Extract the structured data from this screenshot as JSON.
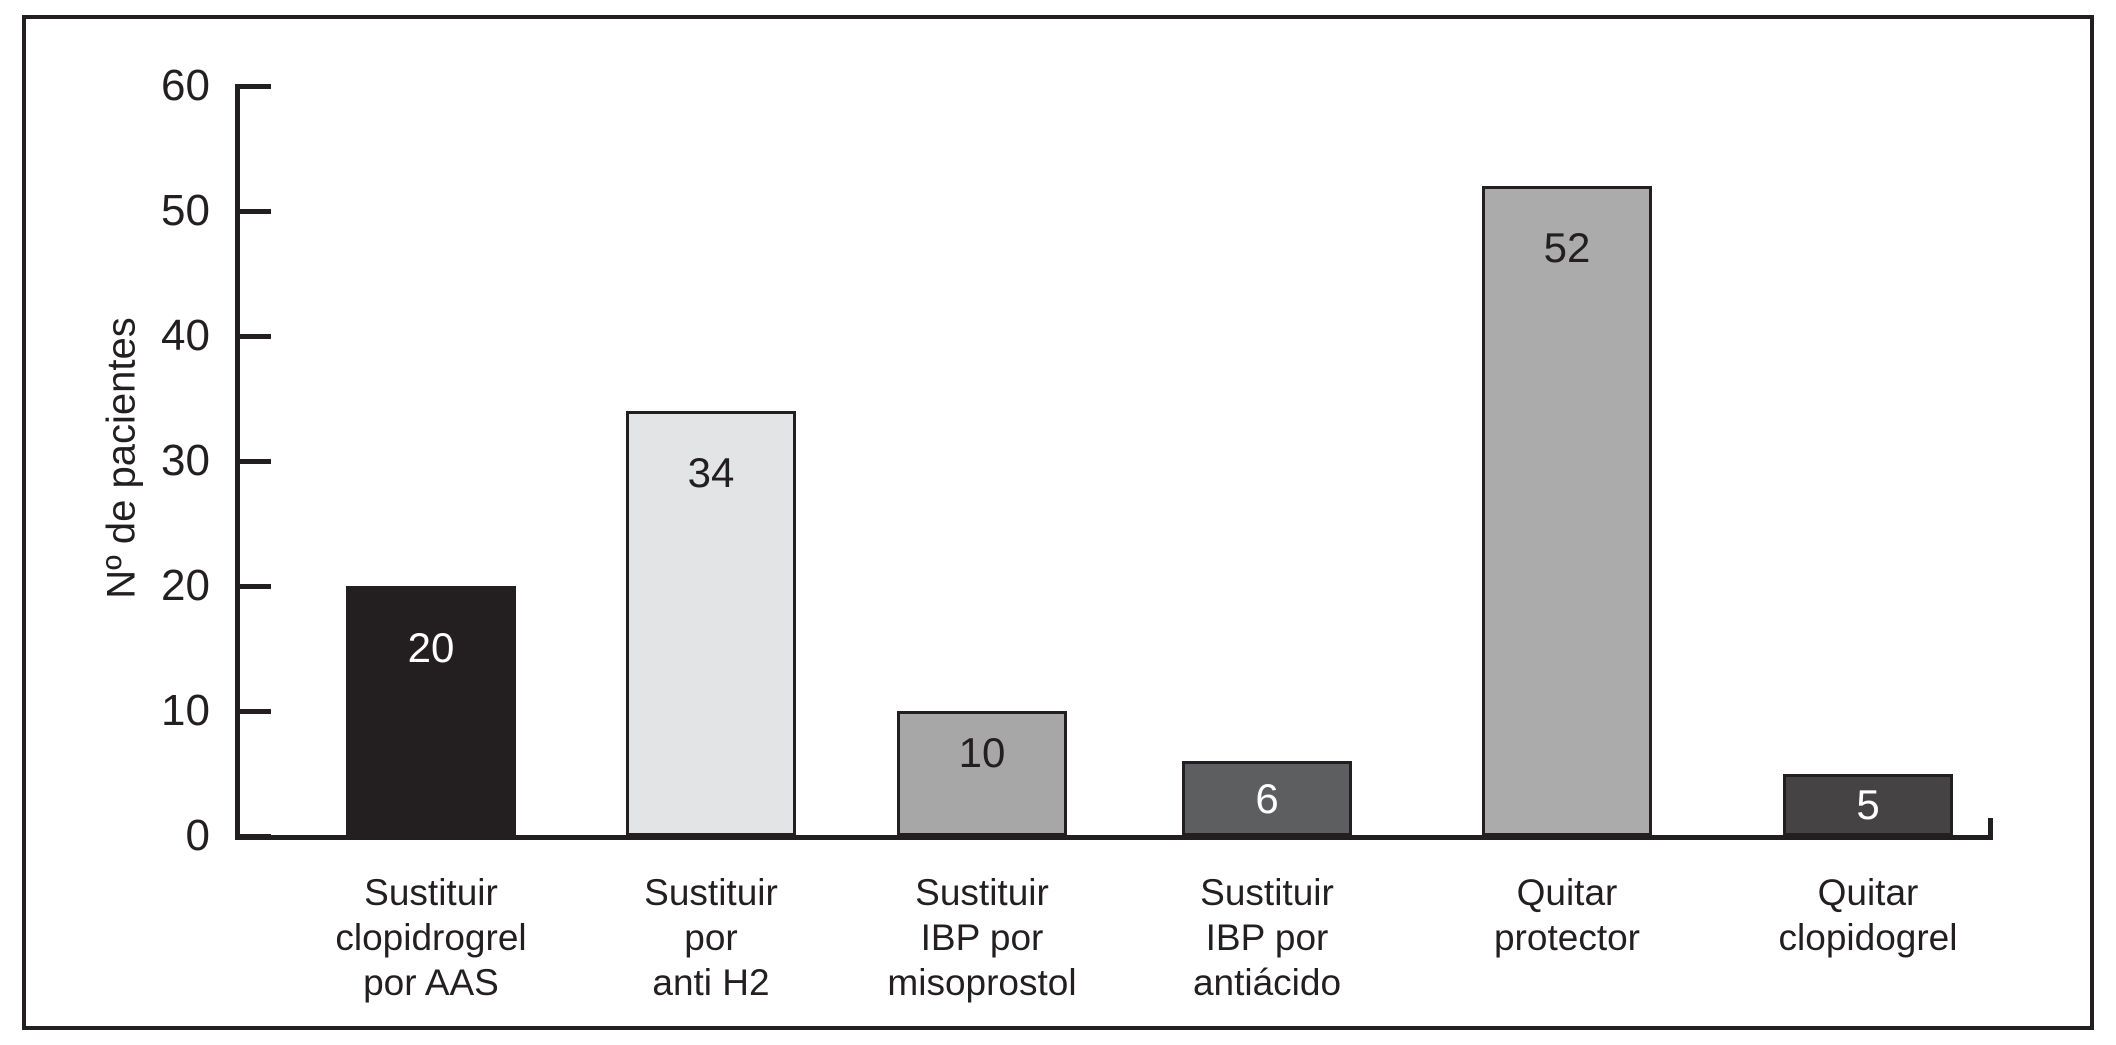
{
  "chart_data": {
    "type": "bar",
    "title": "",
    "xlabel": "",
    "ylabel": "Nº de pacientes",
    "ylim": [
      0,
      60
    ],
    "yticks": [
      0,
      10,
      20,
      30,
      40,
      50,
      60
    ],
    "grid": false,
    "legend": false,
    "categories": [
      "Sustituir clopidrogrel por AAS",
      "Sustituir por anti H2",
      "Sustituir IBP por misoprostol",
      "Sustituir IBP por antiácido",
      "Quitar protector",
      "Quitar clopidogrel"
    ],
    "category_lines": [
      [
        "Sustituir",
        "clopidrogrel",
        "por AAS"
      ],
      [
        "Sustituir",
        "por",
        "anti H2"
      ],
      [
        "Sustituir",
        "IBP por",
        "misoprostol"
      ],
      [
        "Sustituir",
        "IBP por",
        "antiácido"
      ],
      [
        "Quitar",
        "protector"
      ],
      [
        "Quitar",
        "clopidogrel"
      ]
    ],
    "values": [
      20,
      34,
      10,
      6,
      52,
      5
    ],
    "value_labels": [
      "20",
      "34",
      "10",
      "6",
      "52",
      "5"
    ],
    "bar_fill_colors": [
      "#231f20",
      "#e3e4e5",
      "#a7a7a8",
      "#5d5e60",
      "#ababac",
      "#454344"
    ],
    "bar_border_color": "#231f20",
    "value_label_colors": [
      "#ffffff",
      "#231f20",
      "#231f20",
      "#ffffff",
      "#231f20",
      "#ffffff"
    ],
    "axis_color": "#231f20",
    "background_color": "#ffffff"
  }
}
